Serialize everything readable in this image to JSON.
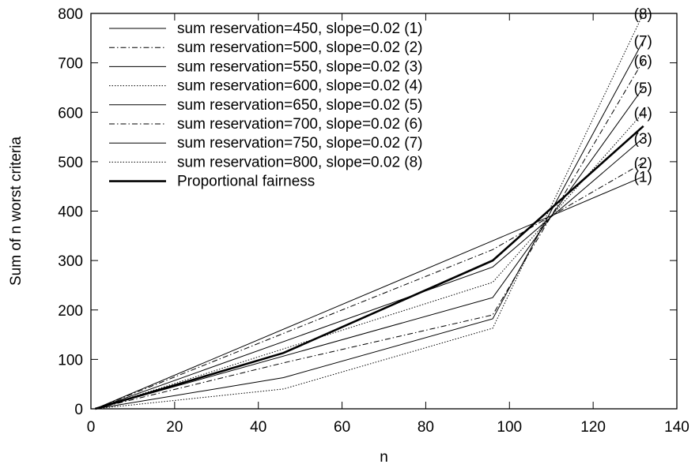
{
  "chart_data": {
    "type": "line",
    "title": "",
    "xlabel": "n",
    "ylabel": "Sum of n worst criteria",
    "xlim": [
      0,
      140
    ],
    "ylim": [
      0,
      800
    ],
    "xticks": [
      0,
      20,
      40,
      60,
      80,
      100,
      120,
      140
    ],
    "yticks": [
      0,
      100,
      200,
      300,
      400,
      500,
      600,
      700,
      800
    ],
    "xtick_labels": [
      "0",
      "20",
      "40",
      "60",
      "80",
      "100",
      "120",
      "140"
    ],
    "ytick_labels": [
      "0",
      "100",
      "200",
      "300",
      "400",
      "500",
      "600",
      "700",
      "800"
    ],
    "grid": false,
    "legend_position": "top-left",
    "series": [
      {
        "name": "sum reservation=450, slope=0.02 (1)",
        "end_label": "(1)",
        "style": "solid",
        "color": "#000000",
        "x": [
          1,
          96,
          132
        ],
        "y": [
          0,
          340,
          470
        ]
      },
      {
        "name": "sum reservation=500, slope=0.02 (2)",
        "end_label": "(2)",
        "style": "dashdot",
        "color": "#000000",
        "x": [
          1,
          96,
          132
        ],
        "y": [
          0,
          322,
          498
        ]
      },
      {
        "name": "sum reservation=550, slope=0.02 (3)",
        "end_label": "(3)",
        "style": "solid",
        "color": "#000000",
        "x": [
          1,
          96,
          132
        ],
        "y": [
          0,
          287,
          548
        ]
      },
      {
        "name": "sum reservation=600, slope=0.02 (4)",
        "end_label": "(4)",
        "style": "dotted",
        "color": "#000000",
        "x": [
          1,
          96,
          132
        ],
        "y": [
          0,
          256,
          600
        ]
      },
      {
        "name": "sum reservation=650, slope=0.02 (5)",
        "end_label": "(5)",
        "style": "solid",
        "color": "#000000",
        "x": [
          1,
          96,
          132
        ],
        "y": [
          0,
          225,
          650
        ]
      },
      {
        "name": "sum reservation=700, slope=0.02 (6)",
        "end_label": "(6)",
        "style": "dashdot",
        "color": "#000000",
        "x": [
          1,
          46,
          96,
          132
        ],
        "y": [
          0,
          93,
          190,
          705
        ]
      },
      {
        "name": "sum reservation=750, slope=0.02 (7)",
        "end_label": "(7)",
        "style": "solid",
        "color": "#000000",
        "x": [
          1,
          46,
          96,
          132
        ],
        "y": [
          0,
          63,
          182,
          745
        ]
      },
      {
        "name": "sum reservation=800, slope=0.02 (8)",
        "end_label": "(8)",
        "style": "dotted",
        "color": "#000000",
        "x": [
          1,
          46,
          96,
          132
        ],
        "y": [
          0,
          40,
          163,
          800
        ]
      },
      {
        "name": "Proportional fairness",
        "end_label": "",
        "style": "thick",
        "color": "#000000",
        "x": [
          1,
          46,
          96,
          132
        ],
        "y": [
          0,
          113,
          300,
          572
        ]
      }
    ]
  }
}
